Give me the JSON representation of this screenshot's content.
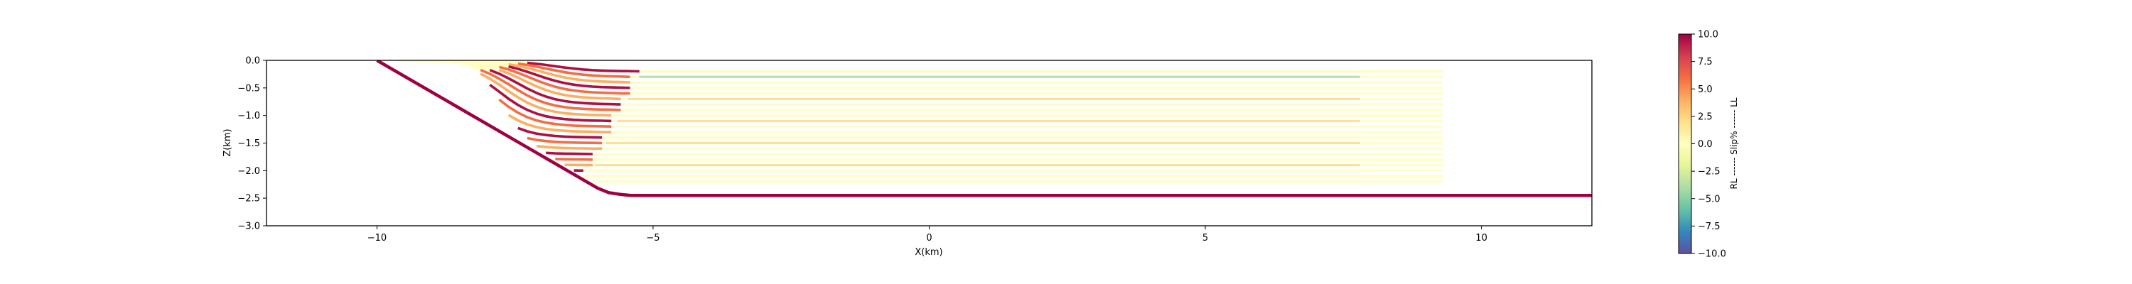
{
  "chart_data": {
    "type": "line",
    "xlabel": "X(km)",
    "ylabel": "Z(km)",
    "xlim": [
      -12,
      12
    ],
    "ylim": [
      -3.0,
      0.0
    ],
    "x_ticks": [
      -10,
      -5,
      0,
      5,
      10
    ],
    "x_tick_labels": [
      "−10",
      "−5",
      "0",
      "5",
      "10"
    ],
    "y_ticks": [
      0.0,
      -0.5,
      -1.0,
      -1.5,
      -2.0,
      -2.5,
      -3.0
    ],
    "y_tick_labels": [
      "0.0",
      "−0.5",
      "−1.0",
      "−1.5",
      "−2.0",
      "−2.5",
      "−3.0"
    ],
    "grid": false,
    "colormap": "Spectral_r",
    "colormap_stops": [
      "#5e4fa2",
      "#3288bd",
      "#66c2a5",
      "#abdda4",
      "#e6f598",
      "#ffffbf",
      "#fee08b",
      "#fdae61",
      "#f46d43",
      "#d53e4f",
      "#9e0142"
    ],
    "colorbar": {
      "label": "RL ------ Slip% ------ LL",
      "range": [
        -10.0,
        10.0
      ],
      "ticks": [
        10.0,
        7.5,
        5.0,
        2.5,
        0.0,
        -2.5,
        -5.0,
        -7.5,
        -10.0
      ],
      "tick_labels": [
        "10.0",
        "7.5",
        "5.0",
        "2.5",
        "0.0",
        "−2.5",
        "−5.0",
        "−7.5",
        "−10.0"
      ]
    },
    "fault": {
      "name": "Fault",
      "color": "#9e0142",
      "x": [
        -10.0,
        -6.0,
        -5.8,
        -5.6,
        -5.4,
        12.0
      ],
      "z": [
        0.0,
        -2.32,
        -2.4,
        -2.43,
        -2.45,
        -2.45
      ]
    },
    "layers": {
      "x_start": -11.0,
      "x_end": 9.3,
      "z_top": -0.2,
      "z_bottom": -2.2,
      "count": 21
    }
  }
}
